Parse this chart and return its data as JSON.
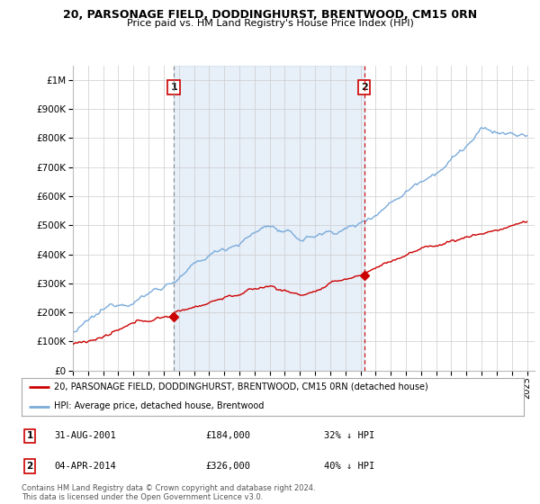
{
  "title": "20, PARSONAGE FIELD, DODDINGHURST, BRENTWOOD, CM15 0RN",
  "subtitle": "Price paid vs. HM Land Registry's House Price Index (HPI)",
  "ytick_values": [
    0,
    100000,
    200000,
    300000,
    400000,
    500000,
    600000,
    700000,
    800000,
    900000,
    1000000
  ],
  "ylim": [
    0,
    1050000
  ],
  "xlim_start": 1995.0,
  "xlim_end": 2025.5,
  "marker1_x": 2001.667,
  "marker1_y": 184000,
  "marker1_label": "1",
  "marker2_x": 2014.25,
  "marker2_y": 326000,
  "marker2_label": "2",
  "legend_line1": "20, PARSONAGE FIELD, DODDINGHURST, BRENTWOOD, CM15 0RN (detached house)",
  "legend_line2": "HPI: Average price, detached house, Brentwood",
  "table_row1": [
    "1",
    "31-AUG-2001",
    "£184,000",
    "32% ↓ HPI"
  ],
  "table_row2": [
    "2",
    "04-APR-2014",
    "£326,000",
    "40% ↓ HPI"
  ],
  "footer": "Contains HM Land Registry data © Crown copyright and database right 2024.\nThis data is licensed under the Open Government Licence v3.0.",
  "red_color": "#cc0000",
  "blue_color": "#7aabdb",
  "blue_fill": "#ddeeff",
  "marker_box_color": "#cc0000",
  "vline1_color": "#888888",
  "vline2_color": "#cc0000",
  "grid_color": "#cccccc",
  "background_color": "#ffffff"
}
